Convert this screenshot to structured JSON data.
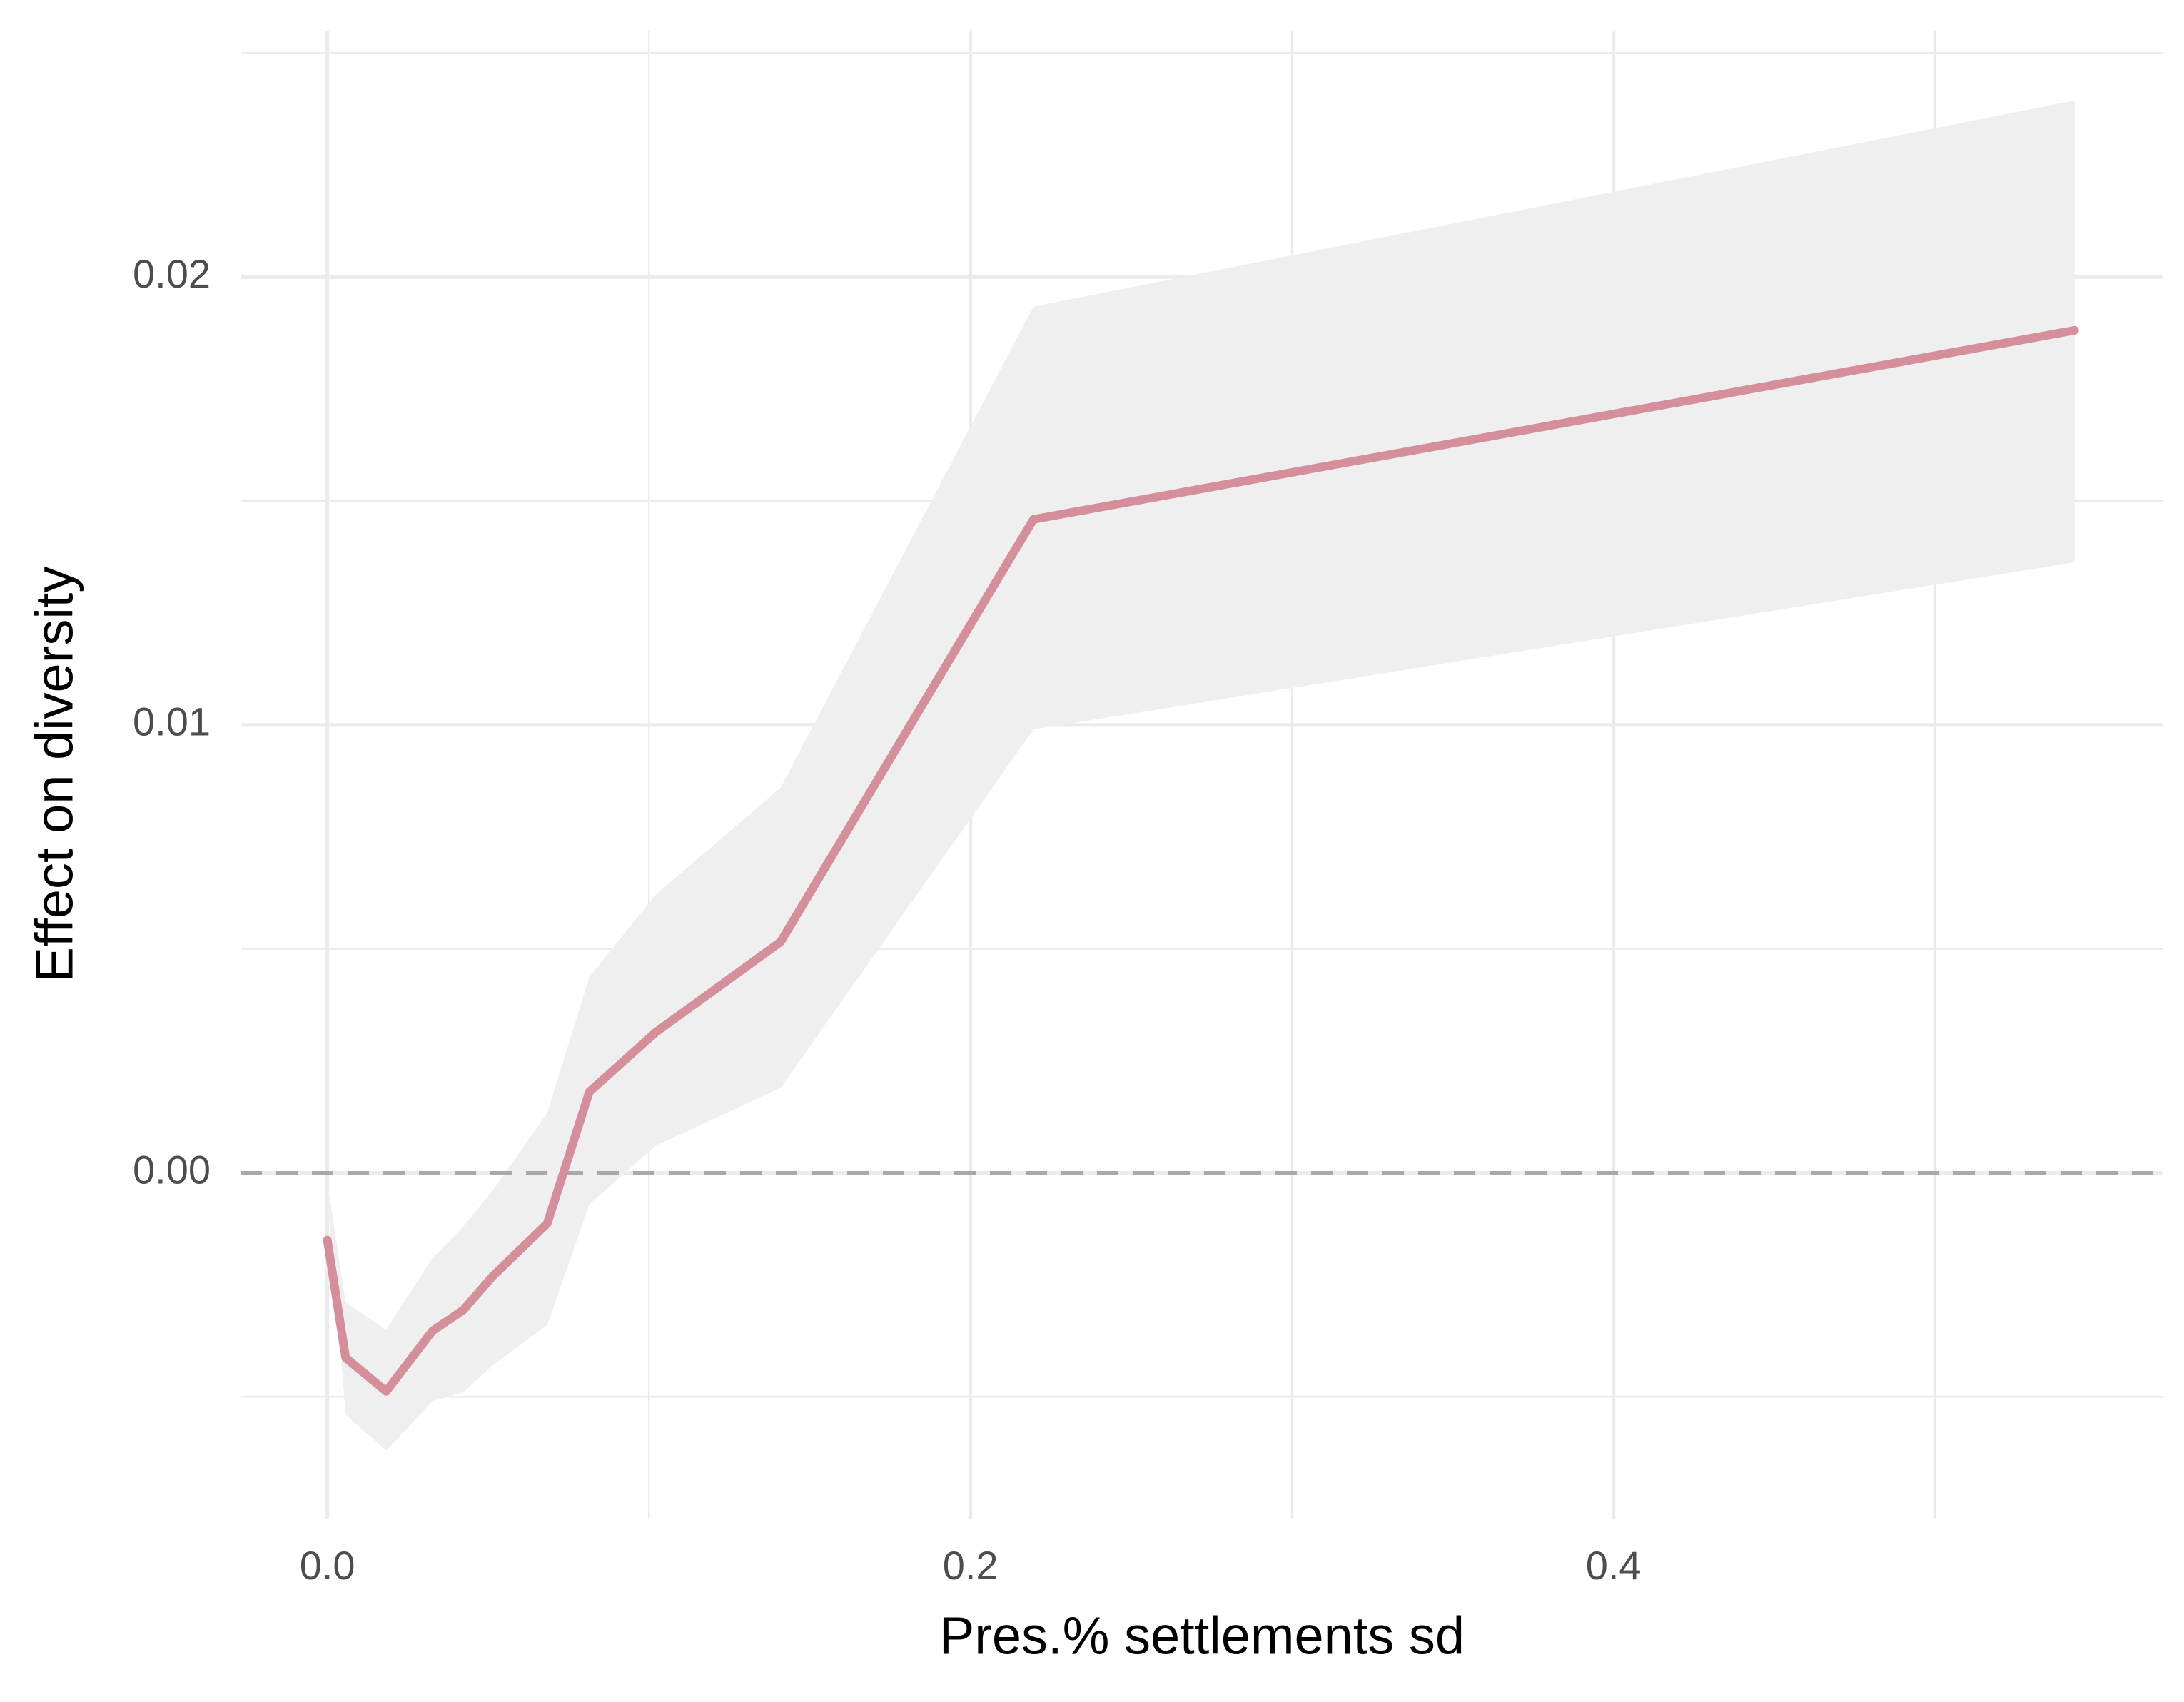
{
  "chart_data": {
    "type": "line",
    "x_label": "Pres.% settlements sd",
    "y_label": "Effect on diversity",
    "x": [
      0,
      0.0057,
      0.0183,
      0.0327,
      0.0423,
      0.0514,
      0.0684,
      0.0815,
      0.102,
      0.141,
      0.2196,
      0.5434
    ],
    "values": [
      -0.0015,
      -0.00413,
      -0.00488,
      -0.00353,
      -0.00306,
      -0.00231,
      -0.00113,
      0.00181,
      0.00313,
      0.00516,
      0.01459,
      0.01881
    ],
    "upper": [
      -0.0002,
      -0.0029,
      -0.0035,
      -0.0019,
      -0.0012,
      -0.0004,
      0.00134,
      0.00438,
      0.0062,
      0.0086,
      0.01934,
      0.02394
    ],
    "lower": [
      -0.0005,
      -0.0054,
      -0.0062,
      -0.0051,
      -0.0049,
      -0.0043,
      -0.0034,
      -0.0007,
      0.0006,
      0.0019,
      0.0099,
      0.01363
    ],
    "color": "#d48f9b",
    "band_color": "#efefef",
    "xlim": [
      -0.027,
      0.571
    ],
    "ylim": [
      -0.00772,
      0.0255
    ],
    "xticks": [
      {
        "value": 0,
        "label": "0.0"
      },
      0.2,
      0.4
    ],
    "yticks": [
      {
        "value": 0,
        "label": "0.00"
      },
      0.01,
      0.02
    ],
    "x_minor_ticks": [
      0.1,
      0.3,
      0.5
    ],
    "y_minor_ticks": [
      -0.005,
      0.005,
      0.015,
      0.025
    ],
    "hline": 0,
    "grid": true
  }
}
